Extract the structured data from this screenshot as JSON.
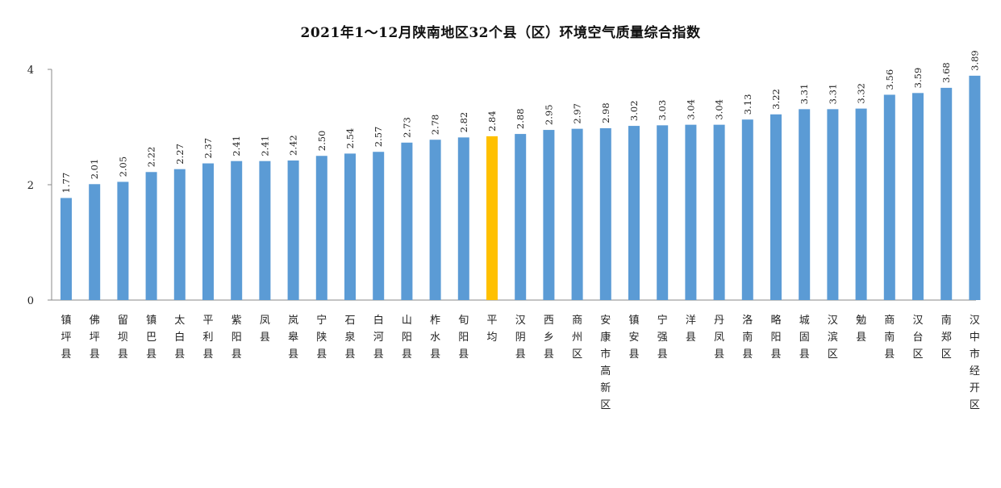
{
  "chart_data": {
    "type": "bar",
    "title": "2021年1～12月陕南地区32个县（区）环境空气质量综合指数",
    "xlabel": "",
    "ylabel": "",
    "ylim": [
      0,
      4
    ],
    "yticks": [
      "0",
      "2",
      "4"
    ],
    "grid": false,
    "legend": "none",
    "categories": [
      "镇坪县",
      "佛坪县",
      "留坝县",
      "镇巴县",
      "太白县",
      "平利县",
      "紫阳县",
      "凤县",
      "岚皋县",
      "宁陕县",
      "石泉县",
      "白河县",
      "山阳县",
      "柞水县",
      "旬阳县",
      "平均",
      "汉阴县",
      "西乡县",
      "商州区",
      "安康市高新区",
      "镇安县",
      "宁强县",
      "洋县",
      "丹凤县",
      "洛南县",
      "略阳县",
      "城固县",
      "汉滨区",
      "勉县",
      "商南县",
      "汉台区",
      "南郑区",
      "汉中市经开区"
    ],
    "values": [
      1.77,
      2.01,
      2.05,
      2.22,
      2.27,
      2.37,
      2.41,
      2.41,
      2.42,
      2.5,
      2.54,
      2.57,
      2.73,
      2.78,
      2.82,
      2.84,
      2.88,
      2.95,
      2.97,
      2.98,
      3.02,
      3.03,
      3.04,
      3.04,
      3.13,
      3.22,
      3.31,
      3.31,
      3.32,
      3.56,
      3.59,
      3.68,
      3.89
    ],
    "value_labels": [
      "1.77",
      "2.01",
      "2.05",
      "2.22",
      "2.27",
      "2.37",
      "2.41",
      "2.41",
      "2.42",
      "2.50",
      "2.54",
      "2.57",
      "2.73",
      "2.78",
      "2.82",
      "2.84",
      "2.88",
      "2.95",
      "2.97",
      "2.98",
      "3.02",
      "3.03",
      "3.04",
      "3.04",
      "3.13",
      "3.22",
      "3.31",
      "3.31",
      "3.32",
      "3.56",
      "3.59",
      "3.68",
      "3.89"
    ],
    "highlight_index": 15,
    "colors": {
      "bar": "#5b9bd5",
      "highlight": "#ffc000",
      "axis": "#888888"
    }
  }
}
